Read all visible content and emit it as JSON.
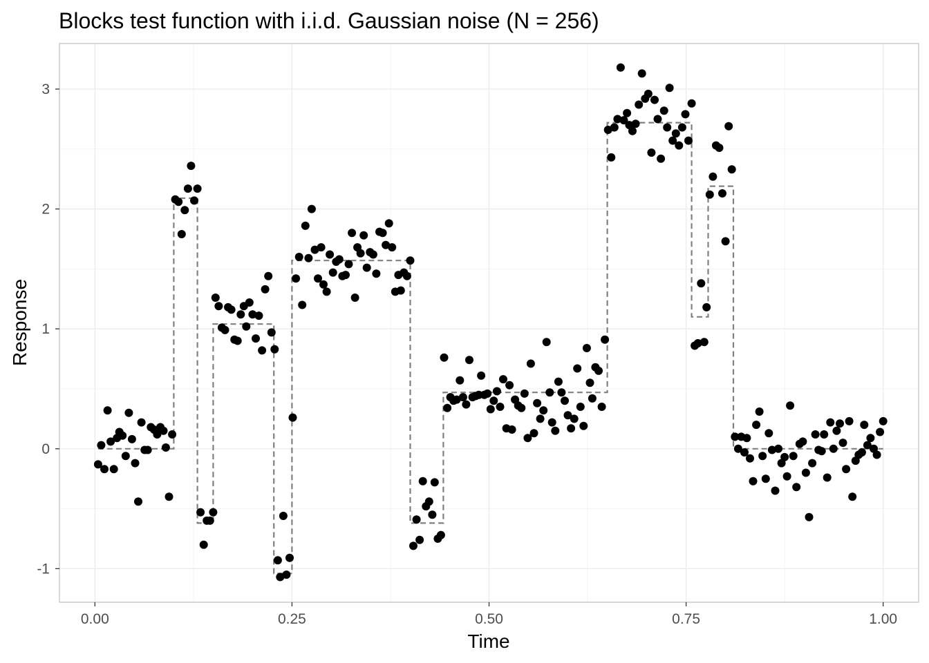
{
  "chart_data": {
    "type": "scatter",
    "title": "Blocks test function with i.i.d. Gaussian noise (N = 256)",
    "xlabel": "Time",
    "ylabel": "Response",
    "xlim": [
      -0.045,
      1.045
    ],
    "ylim": [
      -1.28,
      3.38
    ],
    "x_ticks": [
      0.0,
      0.25,
      0.5,
      0.75,
      1.0
    ],
    "x_tick_labels": [
      "0.00",
      "0.25",
      "0.50",
      "0.75",
      "1.00"
    ],
    "y_ticks": [
      -1,
      0,
      1,
      2,
      3
    ],
    "y_tick_labels": [
      "-1",
      "0",
      "1",
      "2",
      "3"
    ],
    "grid": true,
    "legend": "none",
    "colors": {
      "points": "#000000",
      "step_line": "#7f7f7f",
      "grid_major": "#ebebeb",
      "grid_minor": "#f3f3f3",
      "panel_border": "#c4c4c4",
      "tick_label": "#4d4d4d"
    },
    "series": [
      {
        "kind": "points",
        "points": [
          [
            0.004,
            -0.13
          ],
          [
            0.008,
            0.03
          ],
          [
            0.012,
            -0.17
          ],
          [
            0.016,
            0.32
          ],
          [
            0.02,
            0.06
          ],
          [
            0.024,
            -0.17
          ],
          [
            0.028,
            0.09
          ],
          [
            0.031,
            0.14
          ],
          [
            0.035,
            0.11
          ],
          [
            0.039,
            -0.06
          ],
          [
            0.043,
            0.3
          ],
          [
            0.047,
            0.08
          ],
          [
            0.051,
            -0.12
          ],
          [
            0.055,
            -0.44
          ],
          [
            0.059,
            0.22
          ],
          [
            0.063,
            -0.01
          ],
          [
            0.067,
            -0.01
          ],
          [
            0.071,
            0.18
          ],
          [
            0.075,
            0.16
          ],
          [
            0.079,
            0.12
          ],
          [
            0.083,
            0.18
          ],
          [
            0.087,
            0.15
          ],
          [
            0.09,
            0.01
          ],
          [
            0.094,
            -0.4
          ],
          [
            0.098,
            0.12
          ],
          [
            0.102,
            2.08
          ],
          [
            0.106,
            2.06
          ],
          [
            0.11,
            1.79
          ],
          [
            0.114,
            1.99
          ],
          [
            0.118,
            2.17
          ],
          [
            0.122,
            2.36
          ],
          [
            0.126,
            2.07
          ],
          [
            0.13,
            2.17
          ],
          [
            0.134,
            -0.53
          ],
          [
            0.138,
            -0.8
          ],
          [
            0.142,
            -0.6
          ],
          [
            0.146,
            -0.6
          ],
          [
            0.15,
            -0.53
          ],
          [
            0.153,
            1.26
          ],
          [
            0.157,
            1.19
          ],
          [
            0.161,
            1.01
          ],
          [
            0.165,
            0.99
          ],
          [
            0.169,
            1.18
          ],
          [
            0.173,
            1.16
          ],
          [
            0.177,
            0.91
          ],
          [
            0.181,
            0.9
          ],
          [
            0.185,
            1.12
          ],
          [
            0.189,
            1.19
          ],
          [
            0.192,
            1.02
          ],
          [
            0.196,
            1.22
          ],
          [
            0.2,
            1.12
          ],
          [
            0.204,
            0.92
          ],
          [
            0.208,
            1.11
          ],
          [
            0.212,
            0.82
          ],
          [
            0.216,
            1.33
          ],
          [
            0.22,
            1.44
          ],
          [
            0.224,
            0.97
          ],
          [
            0.228,
            0.83
          ],
          [
            0.232,
            -0.93
          ],
          [
            0.235,
            -1.07
          ],
          [
            0.239,
            -0.56
          ],
          [
            0.243,
            -1.05
          ],
          [
            0.247,
            -0.91
          ],
          [
            0.251,
            0.26
          ],
          [
            0.255,
            1.42
          ],
          [
            0.259,
            1.6
          ],
          [
            0.263,
            1.2
          ],
          [
            0.267,
            1.86
          ],
          [
            0.271,
            1.59
          ],
          [
            0.275,
            2.0
          ],
          [
            0.279,
            1.66
          ],
          [
            0.283,
            1.42
          ],
          [
            0.287,
            1.68
          ],
          [
            0.29,
            1.37
          ],
          [
            0.294,
            1.31
          ],
          [
            0.298,
            1.62
          ],
          [
            0.302,
            1.47
          ],
          [
            0.306,
            1.56
          ],
          [
            0.31,
            1.58
          ],
          [
            0.314,
            1.44
          ],
          [
            0.318,
            1.45
          ],
          [
            0.322,
            1.54
          ],
          [
            0.326,
            1.8
          ],
          [
            0.33,
            1.26
          ],
          [
            0.333,
            1.68
          ],
          [
            0.337,
            1.63
          ],
          [
            0.341,
            1.78
          ],
          [
            0.345,
            1.51
          ],
          [
            0.349,
            1.64
          ],
          [
            0.353,
            1.62
          ],
          [
            0.357,
            1.46
          ],
          [
            0.361,
            1.81
          ],
          [
            0.365,
            1.8
          ],
          [
            0.369,
            1.7
          ],
          [
            0.373,
            1.88
          ],
          [
            0.377,
            1.68
          ],
          [
            0.381,
            1.31
          ],
          [
            0.385,
            1.45
          ],
          [
            0.388,
            1.32
          ],
          [
            0.392,
            1.47
          ],
          [
            0.396,
            1.44
          ],
          [
            0.4,
            1.57
          ],
          [
            0.404,
            -0.81
          ],
          [
            0.408,
            -0.59
          ],
          [
            0.412,
            -0.76
          ],
          [
            0.416,
            -0.27
          ],
          [
            0.42,
            -0.48
          ],
          [
            0.424,
            -0.44
          ],
          [
            0.428,
            -0.55
          ],
          [
            0.431,
            -0.28
          ],
          [
            0.435,
            -0.75
          ],
          [
            0.439,
            -0.72
          ],
          [
            0.443,
            0.76
          ],
          [
            0.447,
            0.34
          ],
          [
            0.451,
            0.43
          ],
          [
            0.455,
            0.4
          ],
          [
            0.459,
            0.41
          ],
          [
            0.463,
            0.57
          ],
          [
            0.467,
            0.43
          ],
          [
            0.471,
            0.37
          ],
          [
            0.475,
            0.74
          ],
          [
            0.479,
            0.43
          ],
          [
            0.483,
            0.44
          ],
          [
            0.487,
            0.45
          ],
          [
            0.49,
            0.61
          ],
          [
            0.494,
            0.45
          ],
          [
            0.498,
            0.46
          ],
          [
            0.502,
            0.33
          ],
          [
            0.506,
            0.4
          ],
          [
            0.51,
            0.48
          ],
          [
            0.514,
            0.35
          ],
          [
            0.518,
            0.58
          ],
          [
            0.522,
            0.17
          ],
          [
            0.526,
            0.53
          ],
          [
            0.529,
            0.16
          ],
          [
            0.533,
            0.41
          ],
          [
            0.537,
            0.36
          ],
          [
            0.541,
            0.34
          ],
          [
            0.545,
            0.46
          ],
          [
            0.549,
            0.09
          ],
          [
            0.553,
            0.71
          ],
          [
            0.557,
            0.13
          ],
          [
            0.561,
            0.38
          ],
          [
            0.565,
            0.25
          ],
          [
            0.569,
            0.32
          ],
          [
            0.573,
            0.89
          ],
          [
            0.577,
            0.47
          ],
          [
            0.58,
            0.22
          ],
          [
            0.584,
            0.15
          ],
          [
            0.588,
            0.56
          ],
          [
            0.592,
            0.47
          ],
          [
            0.596,
            0.4
          ],
          [
            0.6,
            0.28
          ],
          [
            0.604,
            0.17
          ],
          [
            0.608,
            0.25
          ],
          [
            0.612,
            0.67
          ],
          [
            0.616,
            0.35
          ],
          [
            0.62,
            0.19
          ],
          [
            0.624,
            0.84
          ],
          [
            0.628,
            0.55
          ],
          [
            0.631,
            0.42
          ],
          [
            0.635,
            0.68
          ],
          [
            0.639,
            0.65
          ],
          [
            0.643,
            0.35
          ],
          [
            0.647,
            0.91
          ],
          [
            0.651,
            2.66
          ],
          [
            0.655,
            2.43
          ],
          [
            0.659,
            2.68
          ],
          [
            0.663,
            2.75
          ],
          [
            0.667,
            3.18
          ],
          [
            0.671,
            2.74
          ],
          [
            0.675,
            2.8
          ],
          [
            0.678,
            2.7
          ],
          [
            0.682,
            2.65
          ],
          [
            0.686,
            2.71
          ],
          [
            0.69,
            2.87
          ],
          [
            0.694,
            3.13
          ],
          [
            0.698,
            2.92
          ],
          [
            0.702,
            2.96
          ],
          [
            0.706,
            2.47
          ],
          [
            0.71,
            2.91
          ],
          [
            0.714,
            2.75
          ],
          [
            0.718,
            2.42
          ],
          [
            0.722,
            2.82
          ],
          [
            0.726,
            2.68
          ],
          [
            0.729,
            3.01
          ],
          [
            0.733,
            2.57
          ],
          [
            0.737,
            2.63
          ],
          [
            0.741,
            2.53
          ],
          [
            0.745,
            2.68
          ],
          [
            0.749,
            2.79
          ],
          [
            0.753,
            2.57
          ],
          [
            0.757,
            2.88
          ],
          [
            0.761,
            0.86
          ],
          [
            0.765,
            0.88
          ],
          [
            0.769,
            1.38
          ],
          [
            0.773,
            0.89
          ],
          [
            0.776,
            1.18
          ],
          [
            0.78,
            2.12
          ],
          [
            0.784,
            2.27
          ],
          [
            0.788,
            2.53
          ],
          [
            0.792,
            2.51
          ],
          [
            0.796,
            2.13
          ],
          [
            0.8,
            1.73
          ],
          [
            0.804,
            2.69
          ],
          [
            0.808,
            2.33
          ],
          [
            0.812,
            0.1
          ],
          [
            0.816,
            0.0
          ],
          [
            0.82,
            0.1
          ],
          [
            0.824,
            -0.03
          ],
          [
            0.827,
            0.09
          ],
          [
            0.831,
            -0.08
          ],
          [
            0.835,
            -0.27
          ],
          [
            0.839,
            0.2
          ],
          [
            0.843,
            0.31
          ],
          [
            0.847,
            -0.06
          ],
          [
            0.851,
            -0.25
          ],
          [
            0.855,
            0.13
          ],
          [
            0.859,
            -0.01
          ],
          [
            0.863,
            -0.35
          ],
          [
            0.867,
            0.0
          ],
          [
            0.871,
            -0.12
          ],
          [
            0.875,
            -0.07
          ],
          [
            0.878,
            -0.23
          ],
          [
            0.882,
            0.36
          ],
          [
            0.886,
            -0.06
          ],
          [
            0.89,
            -0.32
          ],
          [
            0.894,
            0.04
          ],
          [
            0.898,
            0.06
          ],
          [
            0.902,
            -0.2
          ],
          [
            0.906,
            -0.57
          ],
          [
            0.91,
            -0.12
          ],
          [
            0.914,
            0.12
          ],
          [
            0.918,
            -0.01
          ],
          [
            0.922,
            -0.02
          ],
          [
            0.925,
            0.12
          ],
          [
            0.929,
            -0.24
          ],
          [
            0.933,
            0.22
          ],
          [
            0.937,
            0.0
          ],
          [
            0.941,
            0.15
          ],
          [
            0.945,
            0.21
          ],
          [
            0.949,
            0.05
          ],
          [
            0.953,
            -0.17
          ],
          [
            0.957,
            0.23
          ],
          [
            0.961,
            -0.4
          ],
          [
            0.965,
            -0.1
          ],
          [
            0.969,
            -0.05
          ],
          [
            0.973,
            -0.03
          ],
          [
            0.976,
            0.2
          ],
          [
            0.98,
            0.03
          ],
          [
            0.984,
            0.09
          ],
          [
            0.988,
            0.0
          ],
          [
            0.992,
            -0.05
          ],
          [
            0.996,
            0.14
          ],
          [
            1.0,
            0.23
          ]
        ]
      },
      {
        "kind": "step_line",
        "points": [
          [
            0.004,
            0.0
          ],
          [
            0.1,
            0.0
          ],
          [
            0.1,
            2.09
          ],
          [
            0.13,
            2.09
          ],
          [
            0.13,
            -0.62
          ],
          [
            0.15,
            -0.62
          ],
          [
            0.15,
            1.04
          ],
          [
            0.227,
            1.04
          ],
          [
            0.227,
            -1.04
          ],
          [
            0.25,
            -1.04
          ],
          [
            0.25,
            1.57
          ],
          [
            0.4,
            1.57
          ],
          [
            0.4,
            -0.62
          ],
          [
            0.442,
            -0.62
          ],
          [
            0.442,
            0.47
          ],
          [
            0.65,
            0.47
          ],
          [
            0.65,
            2.72
          ],
          [
            0.757,
            2.72
          ],
          [
            0.757,
            1.1
          ],
          [
            0.778,
            1.1
          ],
          [
            0.778,
            2.19
          ],
          [
            0.81,
            2.19
          ],
          [
            0.81,
            0.0
          ],
          [
            1.0,
            0.0
          ]
        ]
      }
    ]
  }
}
